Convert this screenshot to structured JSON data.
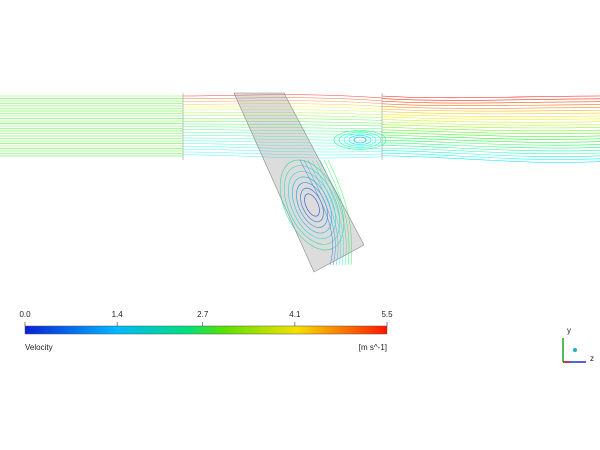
{
  "colorbar": {
    "title": "Velocity",
    "unit": "[m s^-1]",
    "lim": [
      0,
      5.5
    ],
    "ticks": [
      {
        "value": 0,
        "label": "0.0"
      },
      1.4,
      2.7,
      4.1,
      5.5
    ]
  },
  "axes_triad": {
    "labels": [
      "y",
      "z"
    ]
  }
}
